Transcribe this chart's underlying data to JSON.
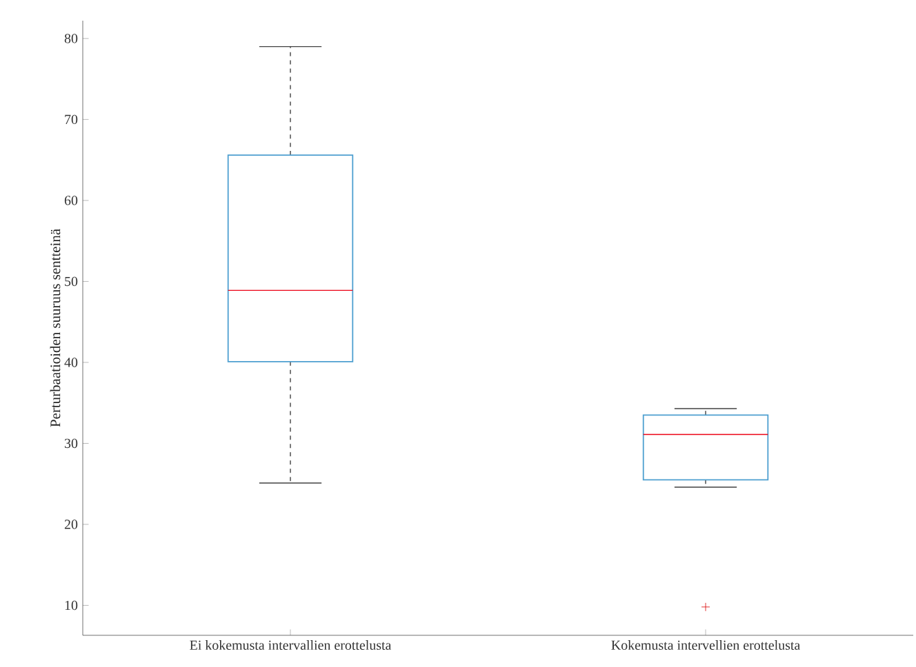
{
  "chart_data": {
    "type": "box",
    "ylabel": "Perturbaatioiden suuruus sentteinä",
    "categories": [
      "Ei kokemusta intervallien erottelusta",
      "Kokemusta intervellien erottelusta"
    ],
    "series": [
      {
        "color": "#4d9fd0",
        "boxes": [
          {
            "low": 25.1,
            "q1": 40.1,
            "median": 48.9,
            "q3": 65.6,
            "high": 79.0
          },
          {
            "low": 24.6,
            "q1": 25.5,
            "median": 31.1,
            "q3": 33.5,
            "high": 34.3,
            "outliers": [
              9.8
            ]
          }
        ]
      }
    ],
    "ylim": [
      6.3,
      82.2
    ],
    "yticks": [
      10,
      20,
      30,
      40,
      50,
      60,
      70,
      80
    ],
    "marker": "cross",
    "grid": false
  }
}
